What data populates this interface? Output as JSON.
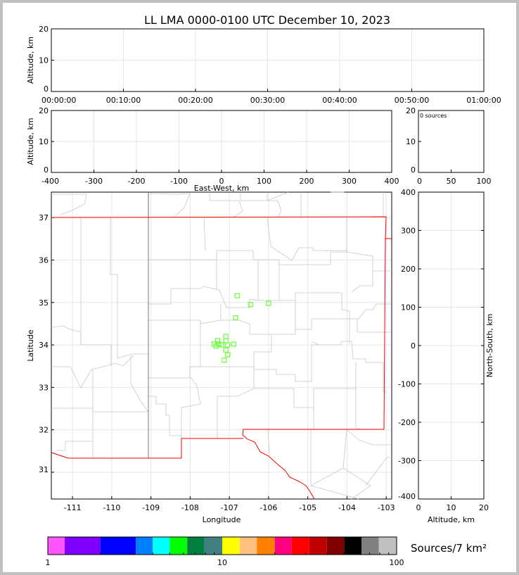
{
  "chart_data": [
    {
      "type": "scatter",
      "panel": "altitude-vs-time",
      "title": "LL LMA 0000-0100 UTC December 10, 2023",
      "ylabel": "Altitude, km",
      "xticks": [
        "00:00:00",
        "00:10:00",
        "00:20:00",
        "00:30:00",
        "00:40:00",
        "00:50:00",
        "01:00:00"
      ],
      "yticks": [
        0,
        10,
        20
      ],
      "ylim": [
        0,
        20
      ],
      "points": []
    },
    {
      "type": "scatter",
      "panel": "altitude-vs-east-west",
      "xlabel": "East-West, km",
      "ylabel": "Altitude, km",
      "xticks": [
        -400,
        -300,
        -200,
        -100,
        0,
        100,
        200,
        300,
        400
      ],
      "xlim": [
        -400,
        400
      ],
      "yticks": [
        0,
        10,
        20
      ],
      "ylim": [
        0,
        20
      ],
      "points": []
    },
    {
      "type": "bar",
      "panel": "altitude-histogram",
      "annotation": "0 sources",
      "xticks": [
        0,
        50,
        100
      ],
      "xlim": [
        0,
        100
      ],
      "yticks": [
        0,
        10,
        20
      ],
      "ylim": [
        0,
        20
      ],
      "values": []
    },
    {
      "type": "scatter",
      "panel": "plan-view",
      "xlabel": "Longitude",
      "ylabel": "Latitude",
      "xticks": [
        -111,
        -110,
        -109,
        -108,
        -107,
        -106,
        -105,
        -104,
        -103
      ],
      "xlim": [
        -111.54,
        -102.86
      ],
      "yticks": [
        31,
        32,
        33,
        34,
        35,
        36,
        37
      ],
      "ylim": [
        30.37,
        37.6
      ],
      "marker_color": "#66ff33",
      "boundary_color": "#ff0000",
      "points": [
        [
          -106.8,
          35.16
        ],
        [
          -106.46,
          34.95
        ],
        [
          -106.0,
          34.98
        ],
        [
          -106.84,
          34.64
        ],
        [
          -107.3,
          34.1
        ],
        [
          -107.09,
          34.2
        ],
        [
          -107.09,
          34.1
        ],
        [
          -107.39,
          34.02
        ],
        [
          -107.27,
          34.02
        ],
        [
          -107.2,
          34.0
        ],
        [
          -107.05,
          34.0
        ],
        [
          -106.89,
          34.02
        ],
        [
          -107.34,
          33.97
        ],
        [
          -107.09,
          33.88
        ],
        [
          -107.04,
          33.77
        ],
        [
          -107.13,
          33.64
        ]
      ]
    },
    {
      "type": "scatter",
      "panel": "north-south-vs-altitude",
      "xlabel": "Altitude, km",
      "ylabel": "North-South, km",
      "xticks": [
        0,
        10,
        20
      ],
      "xlim": [
        0,
        20
      ],
      "yticks": [
        -400,
        -300,
        -200,
        -100,
        0,
        100,
        200,
        300,
        400
      ],
      "ylim": [
        -400,
        400
      ],
      "points": []
    },
    {
      "type": "colorbar",
      "label": "Sources/7 km²",
      "scale": "log",
      "range": [
        1,
        100
      ],
      "ticks": [
        "1",
        "10",
        "100"
      ],
      "colors": [
        "#ff55ff",
        "#8000ff",
        "#0000ff",
        "#0080ff",
        "#00ffff",
        "#00ff00",
        "#008040",
        "#408080",
        "#ffff00",
        "#ffc080",
        "#ff8000",
        "#ff0080",
        "#ff0000",
        "#c00000",
        "#800000",
        "#000000",
        "#808080",
        "#c0c0c0",
        "#ffffff"
      ]
    }
  ]
}
